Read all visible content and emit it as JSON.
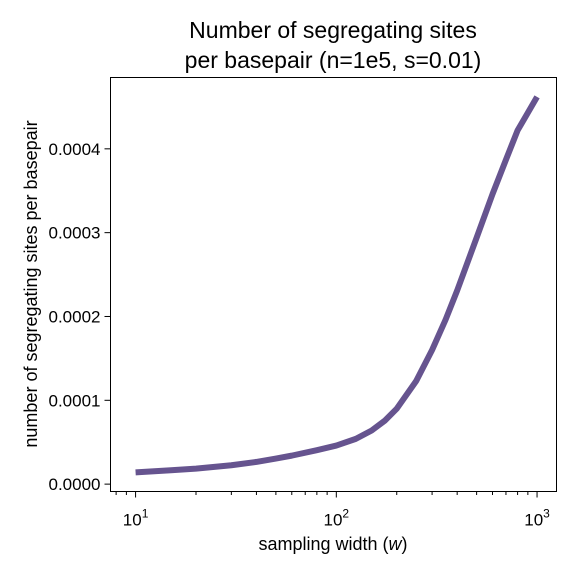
{
  "chart_data": {
    "type": "line",
    "title": [
      "Number of segregating sites",
      "per basepair (n=1e5, s=0.01)"
    ],
    "xlabel": {
      "prefix": "sampling width (",
      "var": "w",
      "suffix": ")"
    },
    "ylabel": "number of segregating sites per basepair",
    "xscale": "log",
    "xlim": [
      7.5,
      1250
    ],
    "ylim": [
      -8.8e-06,
      0.0004851
    ],
    "xticks": [
      {
        "value": 10,
        "base": "10",
        "exp": "1"
      },
      {
        "value": 100,
        "base": "10",
        "exp": "2"
      },
      {
        "value": 1000,
        "base": "10",
        "exp": "3"
      }
    ],
    "yticks": [
      {
        "value": 0.0,
        "label": "0.0000"
      },
      {
        "value": 0.0001,
        "label": "0.0001"
      },
      {
        "value": 0.0002,
        "label": "0.0002"
      },
      {
        "value": 0.0003,
        "label": "0.0003"
      },
      {
        "value": 0.0004,
        "label": "0.0004"
      }
    ],
    "grid": false,
    "legend": "none",
    "series": [
      {
        "color": "#66548f",
        "x": [
          10,
          15,
          20,
          30,
          40,
          50,
          60,
          80,
          100,
          125,
          150,
          175,
          200,
          250,
          300,
          350,
          400,
          500,
          600,
          700,
          800,
          900,
          1000
        ],
        "y": [
          1.4e-05,
          1.65e-05,
          1.85e-05,
          2.25e-05,
          2.65e-05,
          3.05e-05,
          3.4e-05,
          4.05e-05,
          4.6e-05,
          5.4e-05,
          6.4e-05,
          7.6e-05,
          9e-05,
          0.000123,
          0.00016,
          0.000196,
          0.000231,
          0.000294,
          0.000346,
          0.000387,
          0.000422,
          0.000443,
          0.000462
        ]
      }
    ]
  }
}
